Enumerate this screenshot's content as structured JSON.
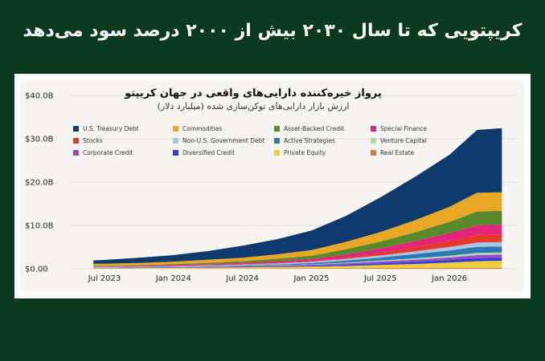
{
  "headline": "کریپتویی که تا سال ۲۰۳۰ بیش از ۲۰۰۰ درصد سود می‌دهد",
  "chart_data": {
    "type": "area",
    "stacked": true,
    "title": "پرواز خیره‌کننده دارایی‌های واقعی در جهان کریپتو",
    "subtitle": "ارزش بازار دارایی‌های توکن‌سازی شده (میلیارد دلار)",
    "y_ticks": [
      "$0.00",
      "$10.0B",
      "$20.0B",
      "$30.0B",
      "$40.0B"
    ],
    "ylim": [
      0,
      40
    ],
    "x_ticks": [
      "Jul 2023",
      "Jan 2024",
      "Jul 2024",
      "Jan 2025",
      "Jul 2025",
      "Jan 2026"
    ],
    "x": [
      2023.42,
      2023.5,
      2023.75,
      2024.0,
      2024.25,
      2024.5,
      2024.75,
      2025.0,
      2025.25,
      2025.5,
      2025.75,
      2026.0,
      2026.2,
      2026.38
    ],
    "grid": "horizontal",
    "legend_position": "top-left",
    "series": [
      {
        "name": "Real Estate",
        "color": "#e3782a",
        "values": [
          0.05,
          0.05,
          0.05,
          0.06,
          0.07,
          0.08,
          0.1,
          0.12,
          0.15,
          0.18,
          0.2,
          0.22,
          0.24,
          0.25
        ]
      },
      {
        "name": "Private Equity",
        "color": "#f2cd3a",
        "values": [
          0.1,
          0.1,
          0.12,
          0.15,
          0.2,
          0.25,
          0.3,
          0.4,
          0.5,
          0.7,
          0.9,
          1.2,
          1.5,
          1.6
        ]
      },
      {
        "name": "Diversified Credit",
        "color": "#2f3fd6",
        "values": [
          0.05,
          0.05,
          0.06,
          0.08,
          0.1,
          0.12,
          0.15,
          0.2,
          0.3,
          0.4,
          0.5,
          0.6,
          0.7,
          0.7
        ]
      },
      {
        "name": "Corporate Credit",
        "color": "#a044c9",
        "values": [
          0.05,
          0.05,
          0.06,
          0.08,
          0.1,
          0.12,
          0.15,
          0.2,
          0.3,
          0.4,
          0.5,
          0.6,
          0.7,
          0.7
        ]
      },
      {
        "name": "Venture Capital",
        "color": "#a9e0a9",
        "values": [
          0.02,
          0.02,
          0.03,
          0.04,
          0.05,
          0.06,
          0.08,
          0.1,
          0.15,
          0.2,
          0.3,
          0.4,
          0.5,
          0.5
        ]
      },
      {
        "name": "Active Strategies",
        "color": "#2c78b3",
        "values": [
          0.05,
          0.05,
          0.06,
          0.08,
          0.1,
          0.15,
          0.2,
          0.3,
          0.5,
          0.7,
          1.0,
          1.2,
          1.4,
          1.4
        ]
      },
      {
        "name": "Non-U.S. Government Debt",
        "color": "#a7c6e2",
        "values": [
          0.1,
          0.1,
          0.1,
          0.12,
          0.15,
          0.2,
          0.25,
          0.3,
          0.4,
          0.5,
          0.6,
          0.8,
          1.0,
          1.0
        ]
      },
      {
        "name": "Stocks",
        "color": "#e8372d",
        "values": [
          0.02,
          0.02,
          0.03,
          0.04,
          0.05,
          0.06,
          0.08,
          0.1,
          0.3,
          0.6,
          1.0,
          1.4,
          1.8,
          1.8
        ]
      },
      {
        "name": "Special Finance",
        "color": "#e3247e",
        "values": [
          0.1,
          0.1,
          0.15,
          0.2,
          0.25,
          0.3,
          0.4,
          0.5,
          0.7,
          1.0,
          1.4,
          1.8,
          2.2,
          2.2
        ]
      },
      {
        "name": "Asset-Backed Credit",
        "color": "#5a8a2a",
        "values": [
          0.1,
          0.1,
          0.15,
          0.2,
          0.3,
          0.4,
          0.6,
          0.8,
          1.2,
          1.6,
          2.0,
          2.6,
          3.2,
          3.2
        ]
      },
      {
        "name": "Commodities",
        "color": "#e8a823",
        "values": [
          0.5,
          0.5,
          0.55,
          0.6,
          0.7,
          0.8,
          1.0,
          1.3,
          1.7,
          2.2,
          2.8,
          3.5,
          4.3,
          4.3
        ]
      },
      {
        "name": "U.S. Treasury Debt",
        "color": "#0e3a6e",
        "values": [
          0.8,
          0.9,
          1.2,
          1.5,
          2.0,
          2.8,
          3.5,
          4.5,
          6.0,
          8.0,
          10.0,
          12.0,
          14.5,
          14.8
        ]
      }
    ],
    "legend": [
      {
        "name": "U.S. Treasury Debt",
        "color": "#0e3a6e"
      },
      {
        "name": "Commodities",
        "color": "#e8a823"
      },
      {
        "name": "Asset-Backed Credit",
        "color": "#5a8a2a"
      },
      {
        "name": "Special Finance",
        "color": "#e3247e"
      },
      {
        "name": "Stocks",
        "color": "#e8372d"
      },
      {
        "name": "Non-U.S. Government Debt",
        "color": "#a7c6e2"
      },
      {
        "name": "Active Strategies",
        "color": "#2c78b3"
      },
      {
        "name": "Venture Capital",
        "color": "#a9e0a9"
      },
      {
        "name": "Corporate Credit",
        "color": "#a044c9"
      },
      {
        "name": "Diversified Credit",
        "color": "#2f3fd6"
      },
      {
        "name": "Private Equity",
        "color": "#f2cd3a"
      },
      {
        "name": "Real Estate",
        "color": "#e3782a"
      }
    ]
  }
}
